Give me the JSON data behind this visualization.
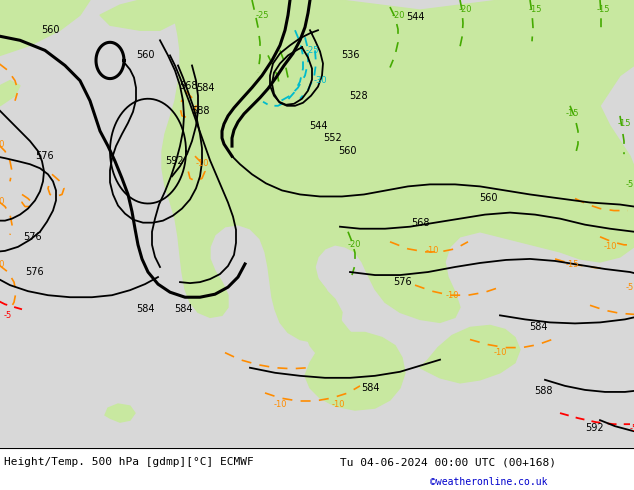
{
  "title_left": "Height/Temp. 500 hPa [gdmp][°C] ECMWF",
  "title_right": "Tu 04-06-2024 00:00 UTC (00+168)",
  "credit": "©weatheronline.co.uk",
  "figsize": [
    6.34,
    4.9
  ],
  "dpi": 100,
  "bg_gray": "#d8d8d8",
  "bg_green": "#c8e8a0",
  "bottom_bar_color": "#ffffff",
  "title_fontsize": 8,
  "credit_color": "#0000cc"
}
